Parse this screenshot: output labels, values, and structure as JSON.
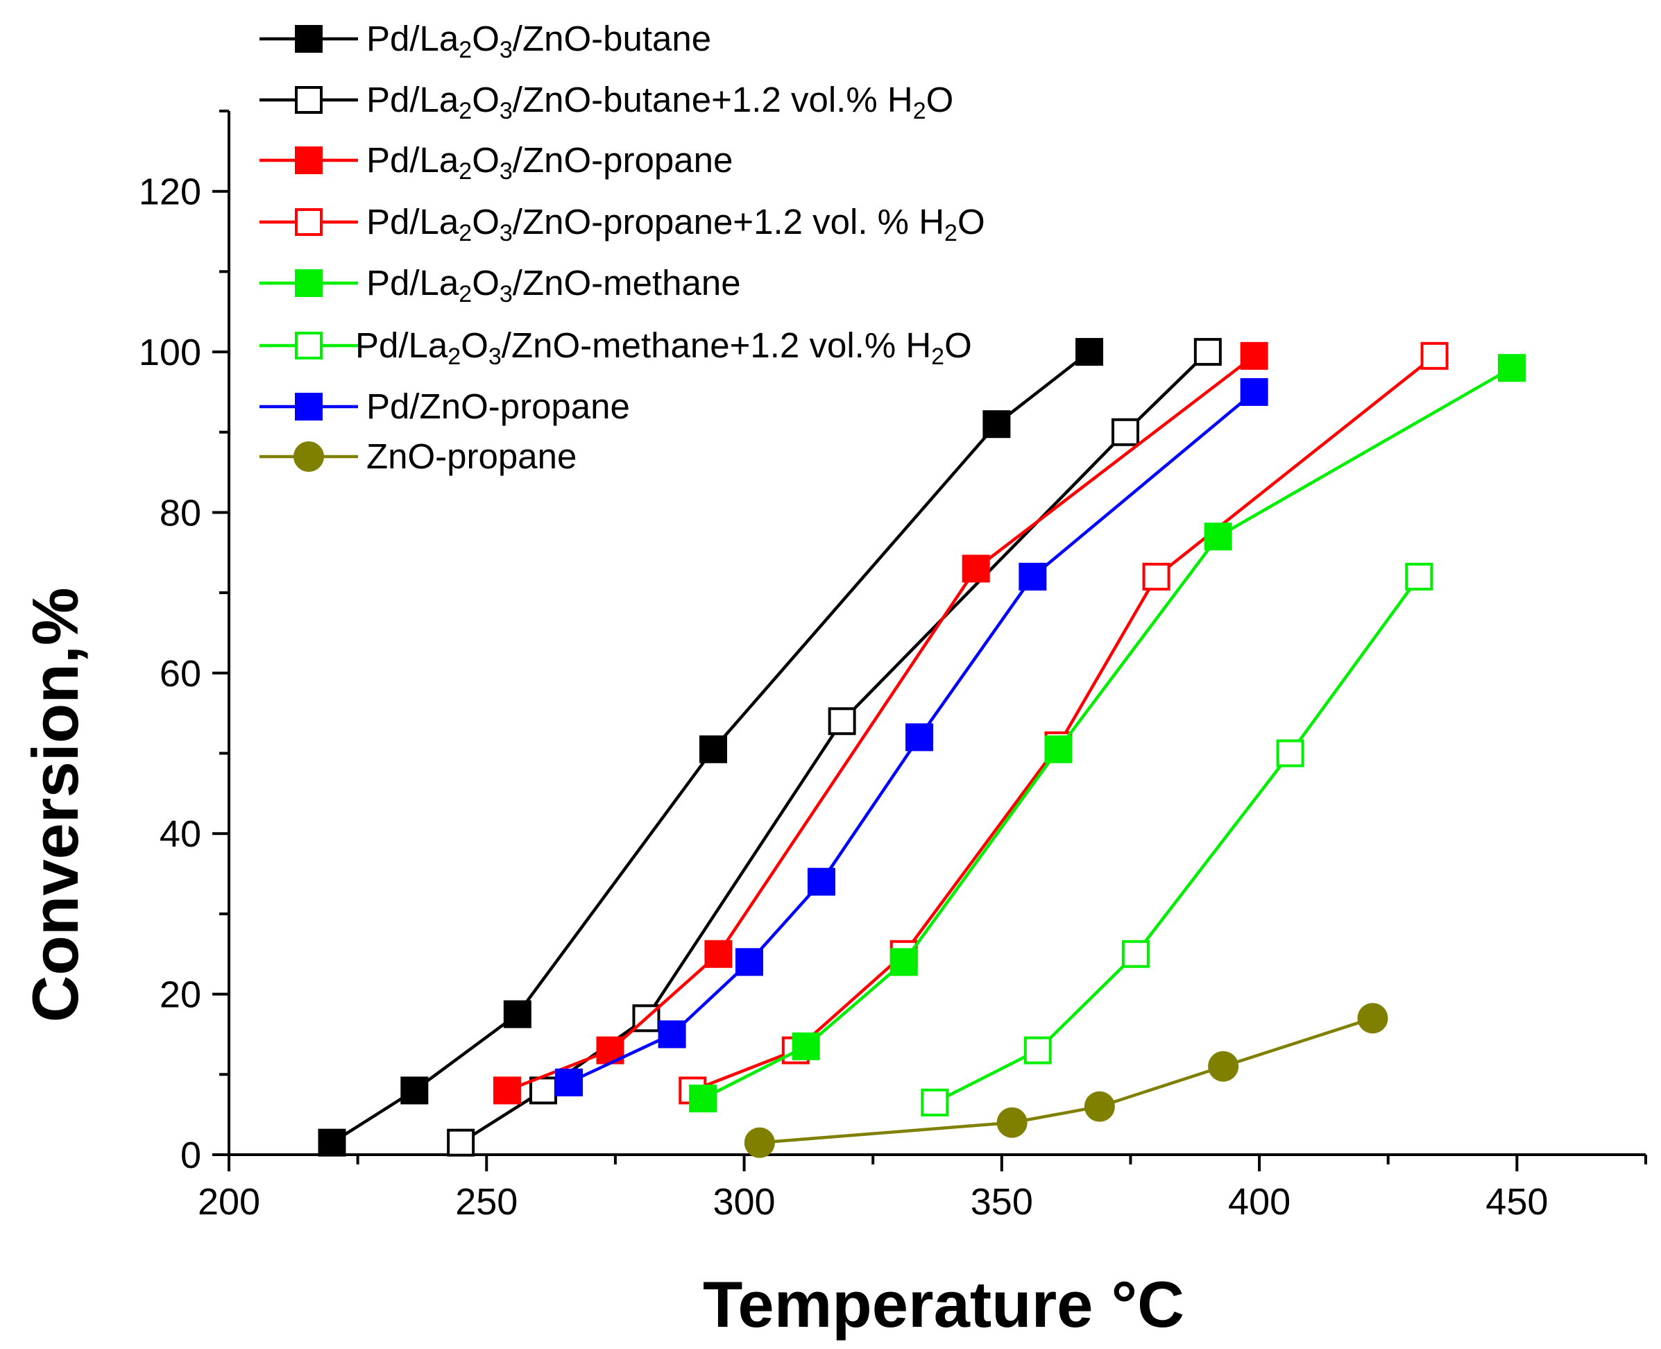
{
  "chart_data": {
    "type": "line",
    "title": "",
    "xlabel": "Temperature °C",
    "ylabel": "Conversion,%",
    "xlim": [
      200,
      475
    ],
    "ylim": [
      0,
      130
    ],
    "xticks": [
      200,
      250,
      300,
      350,
      400,
      450
    ],
    "yticks": [
      0,
      20,
      40,
      60,
      80,
      100,
      120
    ],
    "grid": false,
    "legend_position": "top-left",
    "series": [
      {
        "name": "Pd/La2O3/ZnO-butane",
        "legend_segments": [
          [
            "Pd/La",
            ""
          ],
          [
            "2",
            "sub"
          ],
          [
            "O",
            ""
          ],
          [
            "3",
            "sub"
          ],
          [
            "/ZnO-butane",
            ""
          ]
        ],
        "color": "#000000",
        "marker": "square",
        "filled": true,
        "x": [
          220,
          236,
          256,
          294,
          349,
          367
        ],
        "y": [
          1.5,
          8,
          17.5,
          50.5,
          91,
          100
        ]
      },
      {
        "name": "Pd/La2O3/ZnO-butane+1.2 vol.% H2O",
        "legend_segments": [
          [
            "Pd/La",
            ""
          ],
          [
            "2",
            "sub"
          ],
          [
            "O",
            ""
          ],
          [
            "3",
            "sub"
          ],
          [
            "/ZnO-butane+1.2 vol.% H",
            ""
          ],
          [
            "2",
            "sub"
          ],
          [
            "O",
            ""
          ]
        ],
        "color": "#000000",
        "marker": "square",
        "filled": false,
        "x": [
          245,
          261,
          281,
          319,
          374,
          390
        ],
        "y": [
          1.5,
          8,
          17,
          54,
          90,
          100
        ]
      },
      {
        "name": "Pd/La2O3/ZnO-propane",
        "legend_segments": [
          [
            "Pd/La",
            ""
          ],
          [
            "2",
            "sub"
          ],
          [
            "O",
            ""
          ],
          [
            "3",
            "sub"
          ],
          [
            "/ZnO-propane",
            ""
          ]
        ],
        "color": "#ff0000",
        "marker": "square",
        "filled": true,
        "x": [
          254,
          274,
          295,
          345,
          399
        ],
        "y": [
          8,
          13,
          25,
          73,
          99.5
        ]
      },
      {
        "name": "Pd/La2O3/ZnO-propane+1.2 vol. % H2O",
        "legend_segments": [
          [
            "Pd/La",
            ""
          ],
          [
            "2",
            "sub"
          ],
          [
            "O",
            ""
          ],
          [
            "3",
            "sub"
          ],
          [
            "/ZnO-propane+1.2 vol. % H",
            ""
          ],
          [
            "2",
            "sub"
          ],
          [
            "O",
            ""
          ]
        ],
        "color": "#ff0000",
        "marker": "square",
        "filled": false,
        "x": [
          290,
          310,
          331,
          361,
          380,
          434
        ],
        "y": [
          8,
          13,
          25,
          51,
          72,
          99.5
        ]
      },
      {
        "name": "Pd/La2O3/ZnO-methane",
        "legend_segments": [
          [
            "Pd/La",
            ""
          ],
          [
            "2",
            "sub"
          ],
          [
            "O",
            ""
          ],
          [
            "3",
            "sub"
          ],
          [
            "/ZnO-methane",
            ""
          ]
        ],
        "color": "#00ee00",
        "marker": "square",
        "filled": true,
        "x": [
          292,
          312,
          331,
          361,
          392,
          449
        ],
        "y": [
          7,
          13.5,
          24,
          50.5,
          77,
          98
        ]
      },
      {
        "name": "Pd/La2O3/ZnO-methane+1.2 vol.% H2O",
        "legend_segments": [
          [
            "Pd/La",
            ""
          ],
          [
            "2",
            "sub"
          ],
          [
            "O",
            ""
          ],
          [
            "3",
            "sub"
          ],
          [
            "/ZnO-methane+1.2 vol.% H",
            ""
          ],
          [
            "2",
            "sub"
          ],
          [
            "O",
            ""
          ]
        ],
        "color": "#00ee00",
        "marker": "square",
        "filled": false,
        "x": [
          337,
          357,
          376,
          406,
          431
        ],
        "y": [
          6.5,
          13,
          25,
          50,
          72
        ]
      },
      {
        "name": "Pd/ZnO-propane",
        "legend_segments": [
          [
            "Pd/ZnO-propane",
            ""
          ]
        ],
        "color": "#0000ff",
        "marker": "square",
        "filled": true,
        "x": [
          266,
          286,
          301,
          315,
          334,
          356,
          399
        ],
        "y": [
          9,
          15,
          24,
          34,
          52,
          72,
          95
        ]
      },
      {
        "name": "ZnO-propane",
        "legend_segments": [
          [
            "ZnO-propane",
            ""
          ]
        ],
        "color": "#808000",
        "marker": "circle",
        "filled": true,
        "x": [
          303,
          352,
          369,
          393,
          422
        ],
        "y": [
          1.5,
          4,
          6,
          11,
          17
        ]
      }
    ]
  }
}
